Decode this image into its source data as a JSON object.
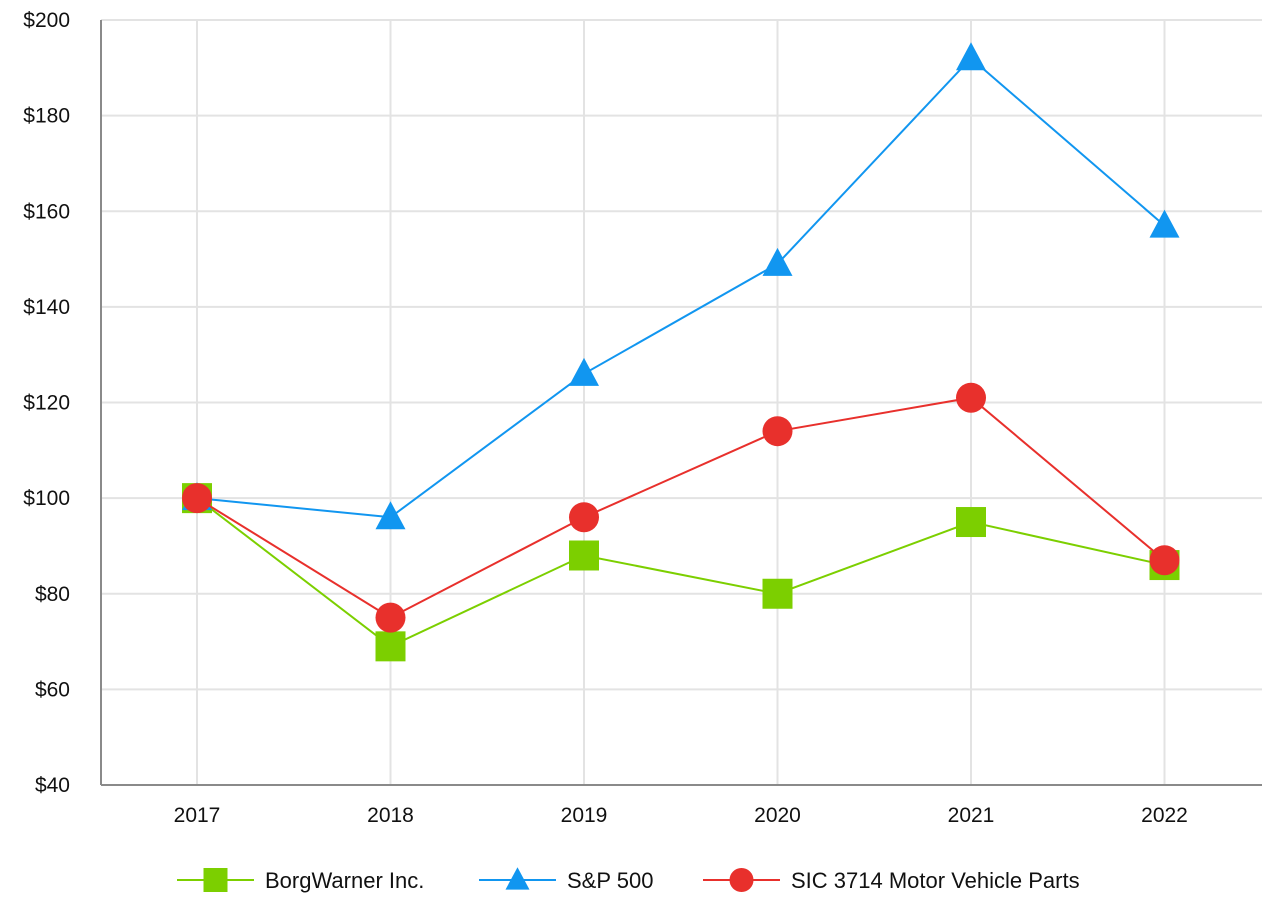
{
  "chart_data": {
    "type": "line",
    "title": "",
    "xlabel": "",
    "ylabel": "",
    "categories": [
      "2017",
      "2018",
      "2019",
      "2020",
      "2021",
      "2022"
    ],
    "ylim": [
      40,
      200
    ],
    "yticks": [
      40,
      60,
      80,
      100,
      120,
      140,
      160,
      180,
      200
    ],
    "ytick_labels": [
      "$40",
      "$60",
      "$80",
      "$100",
      "$120",
      "$140",
      "$160",
      "$180",
      "$200"
    ],
    "grid": true,
    "legend_position": "bottom",
    "series": [
      {
        "name": "BorgWarner Inc.",
        "marker": "square",
        "color": "#7ccf00",
        "values": [
          100,
          69,
          88,
          80,
          95,
          86
        ]
      },
      {
        "name": "S&P 500",
        "marker": "triangle",
        "color": "#1196f0",
        "values": [
          100,
          96,
          126,
          149,
          192,
          157
        ]
      },
      {
        "name": "SIC 3714 Motor Vehicle Parts",
        "marker": "circle",
        "color": "#e8302c",
        "values": [
          100,
          75,
          96,
          114,
          121,
          87
        ]
      }
    ]
  }
}
